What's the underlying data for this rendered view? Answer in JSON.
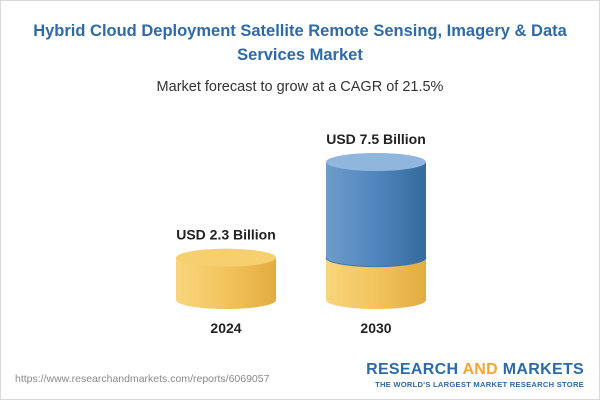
{
  "title": "Hybrid Cloud Deployment Satellite Remote Sensing, Imagery & Data Services Market",
  "subtitle": "Market forecast to grow at a CAGR of 21.5%",
  "footer": {
    "url": "https://www.researchandmarkets.com/reports/6069057",
    "logo_part1": "RESEARCH ",
    "logo_part2": "AND",
    "logo_part3": " MARKETS",
    "tagline": "THE WORLD'S LARGEST MARKET RESEARCH STORE"
  },
  "colors": {
    "title": "#2e6aa6",
    "gold": "#f2c45e",
    "blue": "#4f86bd",
    "logo_accent": "#f2a735"
  },
  "chart_data": {
    "type": "bar",
    "categories": [
      "2024",
      "2030"
    ],
    "values": [
      2.3,
      7.5
    ],
    "value_labels": [
      "USD 2.3 Billion",
      "USD 7.5 Billion"
    ],
    "unit": "USD Billion",
    "title": "Hybrid Cloud Deployment Satellite Remote Sensing, Imagery & Data Services Market",
    "subtitle": "Market forecast to grow at a CAGR of 21.5%",
    "cagr": "21.5%",
    "grid": false,
    "legend": "none"
  }
}
